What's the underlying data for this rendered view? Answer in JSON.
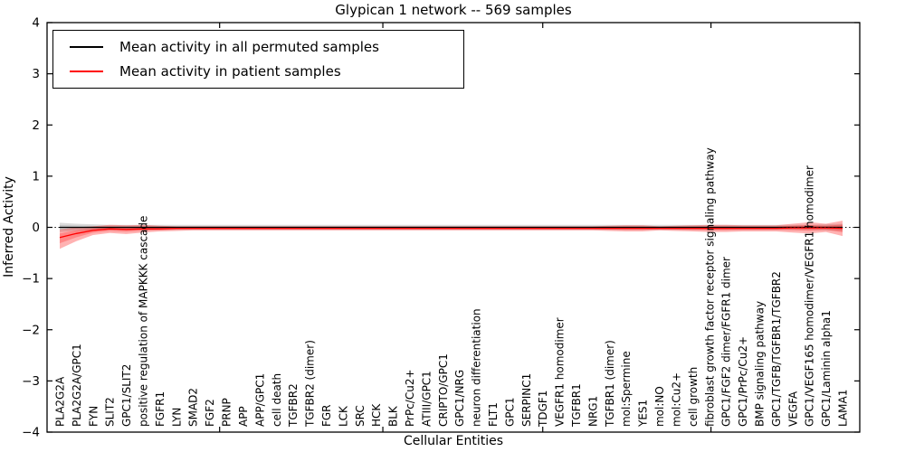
{
  "chart_data": {
    "type": "line",
    "title": "Glypican 1 network -- 569 samples",
    "xlabel": "Cellular Entities",
    "ylabel": "Inferred Activity",
    "ylim": [
      -4,
      4
    ],
    "grid": false,
    "legend_position": "upper-left",
    "y_ticks": [
      4,
      3,
      2,
      1,
      0,
      -1,
      -2,
      -3,
      -4
    ],
    "y_tick_labels": [
      "4",
      "3",
      "2",
      "1",
      "0",
      "−1",
      "−2",
      "−3",
      "−4"
    ],
    "x_minor_tick_positions": [
      9.6,
      19.4,
      29.0,
      39.1
    ],
    "zero_line": {
      "style": "dotted",
      "color": "#000000",
      "y": 0
    },
    "categories": [
      "PLA2G2A",
      "PLA2G2A/GPC1",
      "FYN",
      "SLIT2",
      "GPC1/SLIT2",
      "positive regulation of MAPKKK cascade",
      "FGFR1",
      "LYN",
      "SMAD2",
      "FGF2",
      "PRNP",
      "APP",
      "APP/GPC1",
      "cell death",
      "TGFBR2",
      "TGFBR2 (dimer)",
      "FGR",
      "LCK",
      "SRC",
      "HCK",
      "BLK",
      "PrPc/Cu2+",
      "ATIII/GPC1",
      "CRIPTO/GPC1",
      "GPC1/NRG",
      "neuron differentiation",
      "FLT1",
      "GPC1",
      "SERPINC1",
      "TDGF1",
      "VEGFR1 homodimer",
      "TGFBR1",
      "NRG1",
      "TGFBR1 (dimer)",
      "mol:Spermine",
      "YES1",
      "mol:NO",
      "mol:Cu2+",
      "cell growth",
      "fibroblast growth factor receptor signaling pathway",
      "GPC1/FGF2 dimer/FGFR1 dimer",
      "GPC1/PrPc/Cu2+",
      "BMP signaling pathway",
      "GPC1/TGFB/TGFBR1/TGFBR2",
      "VEGFA",
      "GPC1/VEGF165 homodimer/VEGFR1 homodimer",
      "GPC1/Laminin alpha1",
      "LAMA1"
    ],
    "series": [
      {
        "name": "Mean activity in all permuted samples",
        "color": "#000000",
        "band_color": "#000000",
        "band_opacity": 0.14,
        "values": [
          0,
          0,
          0,
          0,
          0,
          0,
          0,
          0,
          0,
          0,
          0,
          0,
          0,
          0,
          0,
          0,
          0,
          0,
          0,
          0,
          0,
          0,
          0,
          0,
          0,
          0,
          0,
          0,
          0,
          0,
          0,
          0,
          0,
          0,
          0,
          0,
          0,
          0,
          0,
          0,
          0,
          0,
          0,
          0,
          0,
          0,
          0,
          0
        ],
        "band_upper": [
          0.09,
          0.07,
          0.06,
          0.05,
          0.05,
          0.05,
          0.05,
          0.05,
          0.05,
          0.05,
          0.05,
          0.05,
          0.05,
          0.05,
          0.05,
          0.05,
          0.05,
          0.05,
          0.05,
          0.05,
          0.05,
          0.05,
          0.05,
          0.05,
          0.05,
          0.05,
          0.05,
          0.05,
          0.05,
          0.05,
          0.05,
          0.05,
          0.05,
          0.05,
          0.05,
          0.05,
          0.05,
          0.05,
          0.05,
          0.05,
          0.05,
          0.05,
          0.05,
          0.05,
          0.05,
          0.05,
          0.06,
          0.07
        ],
        "band_lower": [
          -0.09,
          -0.07,
          -0.06,
          -0.05,
          -0.05,
          -0.05,
          -0.05,
          -0.05,
          -0.05,
          -0.05,
          -0.05,
          -0.05,
          -0.05,
          -0.05,
          -0.05,
          -0.05,
          -0.05,
          -0.05,
          -0.05,
          -0.05,
          -0.05,
          -0.05,
          -0.05,
          -0.05,
          -0.05,
          -0.05,
          -0.05,
          -0.05,
          -0.05,
          -0.05,
          -0.05,
          -0.05,
          -0.05,
          -0.05,
          -0.05,
          -0.05,
          -0.05,
          -0.05,
          -0.05,
          -0.05,
          -0.05,
          -0.05,
          -0.05,
          -0.05,
          -0.05,
          -0.05,
          -0.06,
          -0.07
        ]
      },
      {
        "name": "Mean activity in patient samples",
        "color": "#ff0000",
        "band_color": "#ff0000",
        "band_opacity": 0.3,
        "values": [
          -0.2,
          -0.12,
          -0.06,
          -0.03,
          -0.04,
          -0.03,
          -0.03,
          -0.02,
          -0.02,
          -0.02,
          -0.02,
          -0.02,
          -0.02,
          -0.02,
          -0.02,
          -0.02,
          -0.02,
          -0.02,
          -0.02,
          -0.02,
          -0.02,
          -0.02,
          -0.02,
          -0.02,
          -0.02,
          -0.02,
          -0.02,
          -0.02,
          -0.02,
          -0.02,
          -0.02,
          -0.02,
          -0.02,
          -0.02,
          -0.02,
          -0.02,
          -0.02,
          -0.02,
          -0.02,
          -0.02,
          -0.02,
          -0.02,
          -0.02,
          -0.02,
          -0.01,
          -0.01,
          -0.01,
          -0.02
        ],
        "band_upper": [
          -0.04,
          0.0,
          0.02,
          0.05,
          0.04,
          0.05,
          0.03,
          0.02,
          0.02,
          0.02,
          0.02,
          0.02,
          0.02,
          0.02,
          0.02,
          0.02,
          0.02,
          0.02,
          0.02,
          0.02,
          0.02,
          0.02,
          0.02,
          0.02,
          0.02,
          0.02,
          0.02,
          0.02,
          0.02,
          0.02,
          0.02,
          0.02,
          0.02,
          0.03,
          0.04,
          0.04,
          0.02,
          0.03,
          0.04,
          0.05,
          0.05,
          0.04,
          0.04,
          0.04,
          0.07,
          0.1,
          0.07,
          0.13
        ],
        "band_lower": [
          -0.42,
          -0.27,
          -0.15,
          -0.11,
          -0.13,
          -0.1,
          -0.08,
          -0.07,
          -0.06,
          -0.06,
          -0.06,
          -0.06,
          -0.06,
          -0.06,
          -0.06,
          -0.06,
          -0.06,
          -0.06,
          -0.06,
          -0.06,
          -0.06,
          -0.06,
          -0.06,
          -0.06,
          -0.06,
          -0.06,
          -0.06,
          -0.06,
          -0.06,
          -0.06,
          -0.06,
          -0.06,
          -0.06,
          -0.07,
          -0.08,
          -0.08,
          -0.06,
          -0.07,
          -0.08,
          -0.09,
          -0.09,
          -0.08,
          -0.08,
          -0.08,
          -0.1,
          -0.12,
          -0.09,
          -0.17
        ]
      }
    ],
    "legend": [
      {
        "label": "Mean activity in all permuted samples",
        "color": "#000000"
      },
      {
        "label": "Mean activity in patient samples",
        "color": "#ff0000"
      }
    ]
  }
}
